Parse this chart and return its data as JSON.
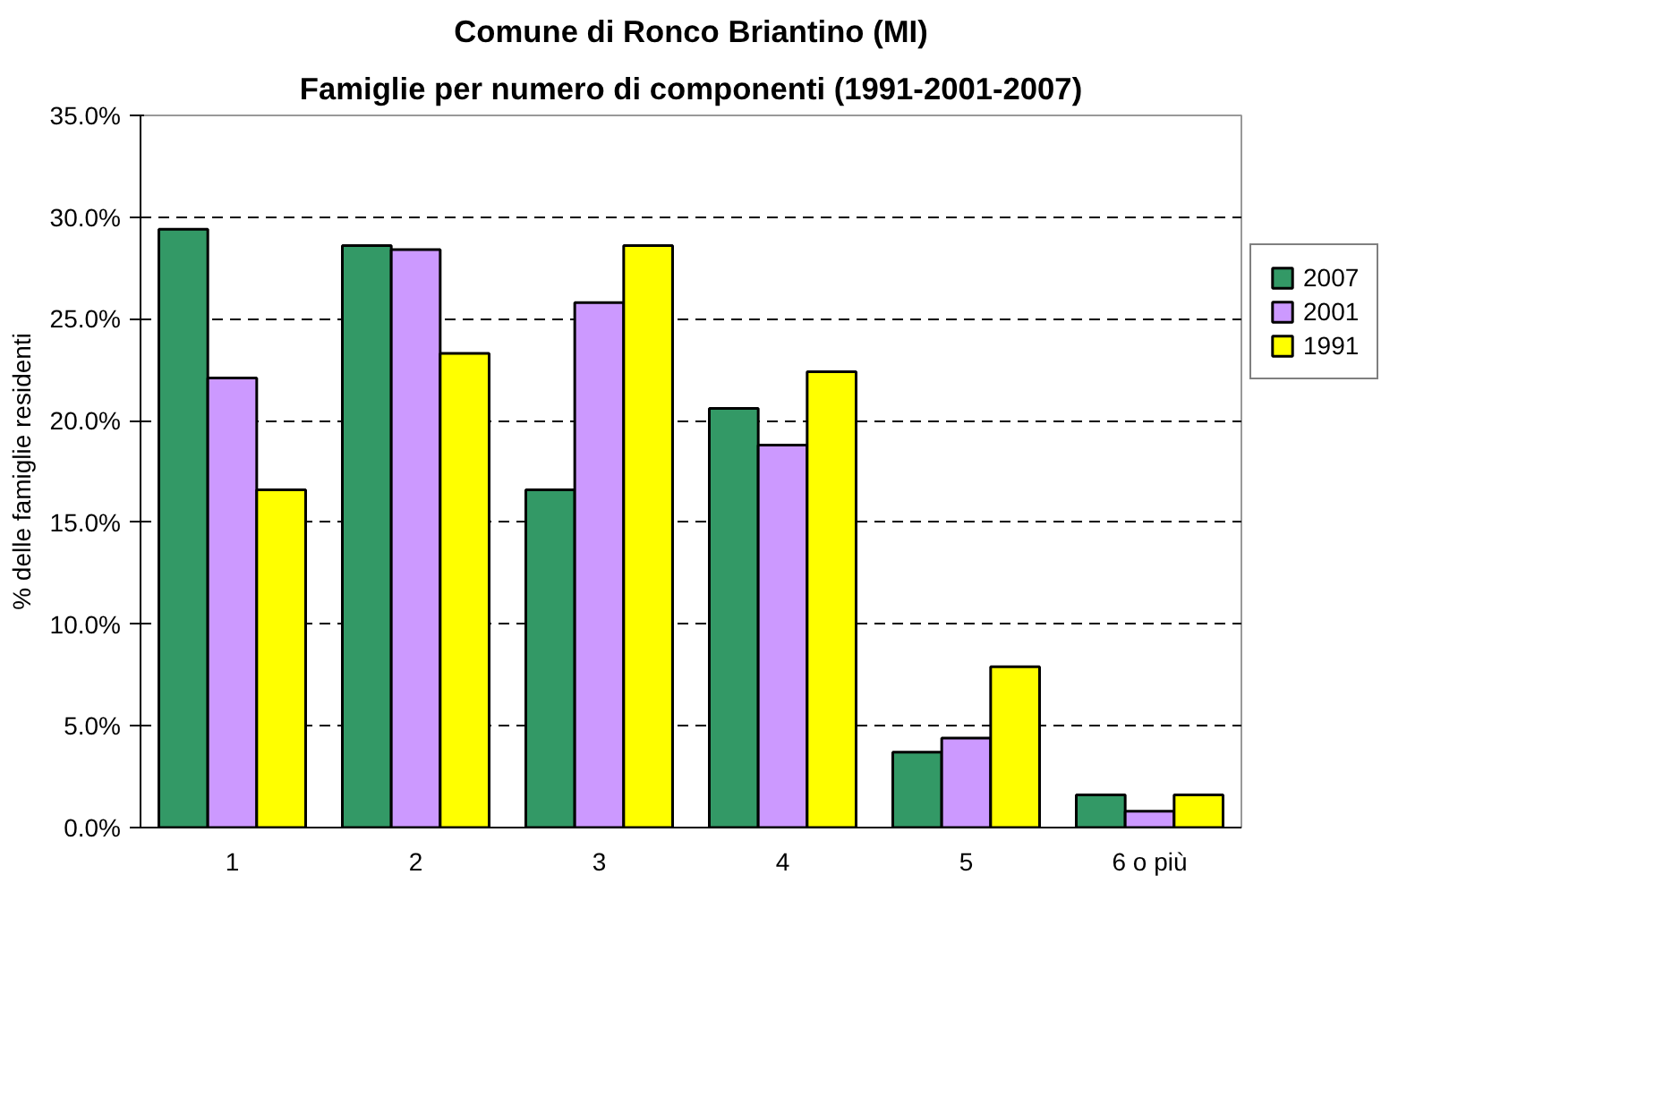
{
  "chart_data": {
    "type": "bar",
    "title": "Comune di Ronco Briantino (MI)",
    "subtitle": "Famiglie per numero di componenti (1991-2001-2007)",
    "ylabel": "% delle famiglie residenti",
    "categories": [
      "1",
      "2",
      "3",
      "4",
      "5",
      "6 o più"
    ],
    "series": [
      {
        "name": "2007",
        "color": "#339966",
        "values": [
          29.4,
          28.6,
          16.6,
          20.6,
          3.7,
          1.6
        ]
      },
      {
        "name": "2001",
        "color": "#cc99ff",
        "values": [
          22.1,
          28.4,
          25.8,
          18.8,
          4.4,
          0.8
        ]
      },
      {
        "name": "1991",
        "color": "#ffff00",
        "values": [
          16.6,
          23.3,
          28.6,
          22.4,
          7.9,
          1.6
        ]
      }
    ],
    "ylim": [
      0,
      35
    ],
    "yticks": [
      {
        "value": 0,
        "label": "0.0%"
      },
      {
        "value": 5,
        "label": "5.0%"
      },
      {
        "value": 10,
        "label": "10.0%"
      },
      {
        "value": 15,
        "label": "15.0%"
      },
      {
        "value": 20,
        "label": "20.0%"
      },
      {
        "value": 25,
        "label": "25.0%"
      },
      {
        "value": 30,
        "label": "30.0%"
      },
      {
        "value": 35,
        "label": "35.0%"
      }
    ],
    "grid": "y",
    "legend": "right"
  }
}
